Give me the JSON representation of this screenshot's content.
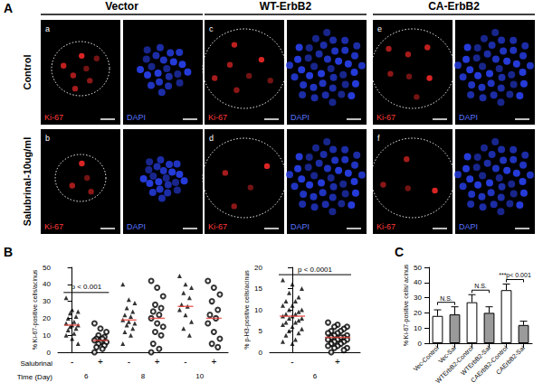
{
  "panel_labels": [
    "A",
    "B",
    "C"
  ],
  "panel_a": {
    "columns": [
      "Vector",
      "WT-ErbB2",
      "CA-ErbB2"
    ],
    "rows": [
      "Control",
      "Salubrinal-10ug/ml"
    ],
    "stains": [
      "Ki-67",
      "DAPI"
    ],
    "panel_letters": [
      [
        "a",
        "c",
        "e"
      ],
      [
        "b",
        "d",
        "f"
      ]
    ]
  },
  "chart_data": [
    {
      "type": "scatter",
      "y_label": "% Ki-67-positive cells/acinus",
      "ylim": [
        0,
        50
      ],
      "yticks": [
        0,
        10,
        20,
        30,
        40,
        50
      ],
      "grid": false,
      "row_labels": [
        "Salubrinal",
        "Time (Day)"
      ],
      "times": [
        {
          "label": "6",
          "annotation": "p < 0.001",
          "groups": [
            {
              "label": "-",
              "marker": "triangle",
              "values": [
                32,
                25,
                24,
                23,
                21,
                20,
                18,
                17,
                16,
                16,
                15,
                14,
                13,
                11,
                10,
                8,
                5
              ],
              "median": 16
            },
            {
              "label": "+",
              "marker": "open circle",
              "values": [
                17,
                14,
                12,
                10,
                9,
                8,
                8,
                7,
                6,
                6,
                5,
                4,
                3,
                2,
                0
              ],
              "median": 7
            }
          ]
        },
        {
          "label": "8",
          "groups": [
            {
              "label": "-",
              "marker": "triangle",
              "values": [
                40,
                31,
                29,
                26,
                24,
                22,
                21,
                19,
                18,
                17,
                16,
                14,
                12,
                10,
                5
              ],
              "median": 19
            },
            {
              "label": "+",
              "marker": "open circle",
              "values": [
                42,
                38,
                33,
                28,
                26,
                24,
                22,
                20,
                17,
                15,
                12,
                10,
                5,
                2,
                0
              ],
              "median": 20
            }
          ]
        },
        {
          "label": "10",
          "groups": [
            {
              "label": "-",
              "marker": "triangle",
              "values": [
                45,
                40,
                38,
                35,
                32,
                28,
                27,
                25,
                22,
                18,
                14,
                10
              ],
              "median": 27
            },
            {
              "label": "+",
              "marker": "open circle",
              "values": [
                42,
                38,
                34,
                30,
                25,
                22,
                20,
                17,
                12,
                8,
                5,
                3
              ],
              "median": 20
            }
          ]
        }
      ]
    },
    {
      "type": "scatter",
      "y_label": "% p-H3-positive cells/acinus",
      "ylim": [
        0,
        20
      ],
      "yticks": [
        0,
        5,
        10,
        15,
        20
      ],
      "grid": false,
      "times": [
        {
          "label": "6",
          "annotation": "p < 0.0001",
          "groups": [
            {
              "label": "-",
              "marker": "triangle",
              "values": [
                17,
                16,
                15,
                14,
                13,
                12,
                12,
                11,
                11,
                10,
                10,
                9.5,
                9,
                9,
                8.5,
                8.5,
                8,
                8,
                7.5,
                7,
                7,
                6.5,
                6,
                5.5,
                5,
                4.5,
                4,
                3,
                2.5,
                2
              ],
              "median": 8.5
            },
            {
              "label": "+",
              "marker": "open circle",
              "values": [
                7,
                6.5,
                6,
                6,
                5.5,
                5,
                5,
                4.5,
                4.5,
                4,
                4,
                3.5,
                3.5,
                3.5,
                3,
                3,
                3,
                2.5,
                2.5,
                2,
                2,
                1.5,
                1.5,
                1,
                1,
                0.5,
                0
              ],
              "median": 3.5
            }
          ]
        }
      ]
    },
    {
      "type": "bar",
      "y_label": "% Ki-67-positive cells/ acinus",
      "categories": [
        "Vec-Control",
        "Vec-Sal",
        "WTErbB2-Control",
        "WTErbB2-Sal",
        "CAErbB2-Control",
        "CAErbB2-Sal"
      ],
      "values": [
        18,
        19,
        27,
        20,
        35,
        12
      ],
      "errors": [
        4,
        5,
        5,
        4,
        4,
        2.5
      ],
      "colors": [
        "#ffffff",
        "#9a9a9a",
        "#ffffff",
        "#9a9a9a",
        "#ffffff",
        "#9a9a9a"
      ],
      "ylim": [
        0,
        50
      ],
      "yticks": [
        0,
        10,
        20,
        30,
        40,
        50
      ],
      "grid": false,
      "annotations": [
        {
          "text": "N.S.",
          "categories": [
            "Vec-Control",
            "Vec-Sal"
          ]
        },
        {
          "text": "N.S.",
          "categories": [
            "WTErbB2-Control",
            "WTErbB2-Sal"
          ]
        },
        {
          "text": "***p< 0.001",
          "categories": [
            "CAErbB2-Control",
            "CAErbB2-Sal"
          ]
        }
      ]
    }
  ]
}
